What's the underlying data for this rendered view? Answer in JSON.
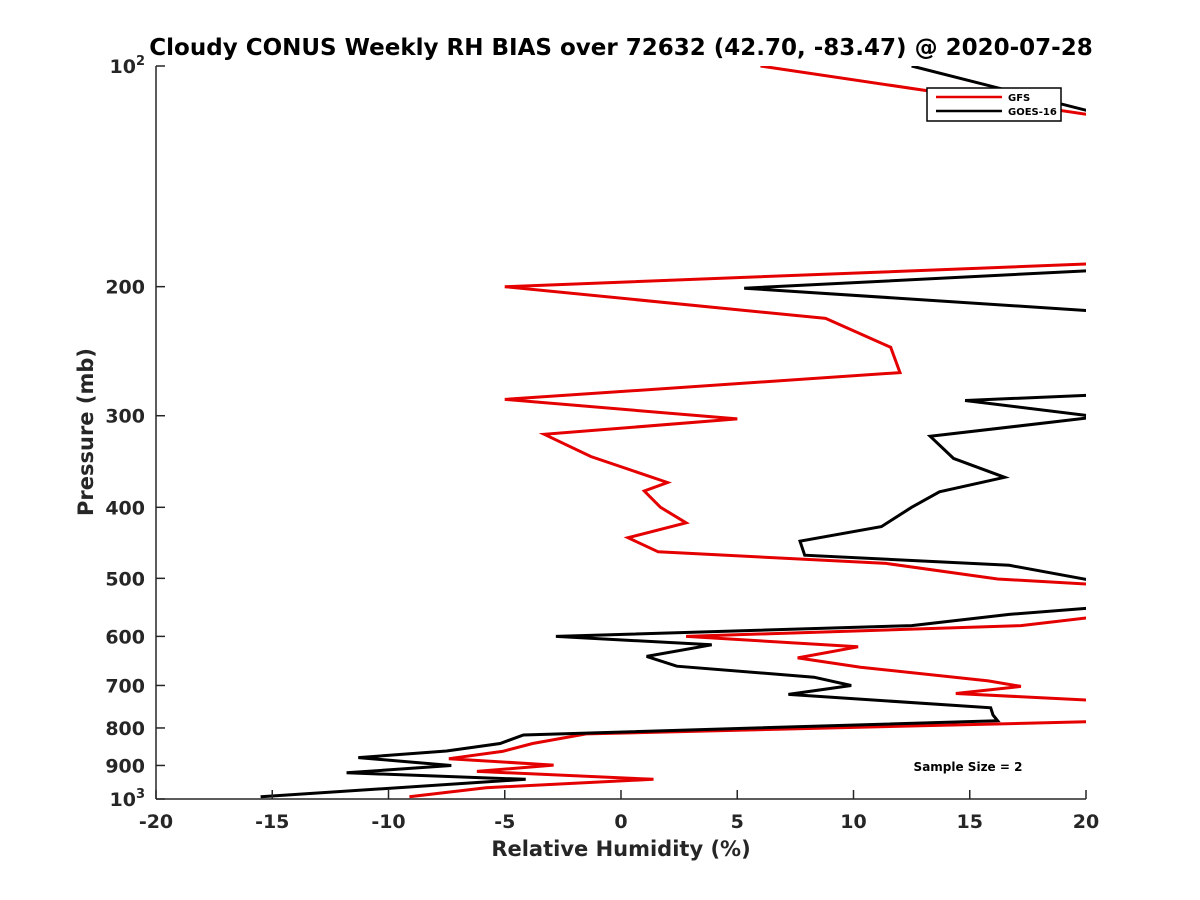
{
  "chart_data": {
    "type": "line",
    "title": "Cloudy CONUS Weekly RH BIAS over 72632 (42.70, -83.47) @ 2020-07-28",
    "xlabel": "Relative Humidity (%)",
    "ylabel": "Pressure (mb)",
    "xlim": [
      -20,
      20
    ],
    "ylim": [
      100,
      1000
    ],
    "yscale": "log",
    "y_reversed": true,
    "x_ticks": [
      {
        "value": -20,
        "label": "-20"
      },
      {
        "value": -15,
        "label": "-15"
      },
      {
        "value": -10,
        "label": "-10"
      },
      {
        "value": -5,
        "label": "-5"
      },
      {
        "value": 0,
        "label": "0"
      },
      {
        "value": 5,
        "label": "5"
      },
      {
        "value": 10,
        "label": "10"
      },
      {
        "value": 15,
        "label": "15"
      },
      {
        "value": 20,
        "label": "20"
      }
    ],
    "y_ticks": [
      {
        "value": 100,
        "base": "10",
        "exp": "2"
      },
      {
        "value": 200,
        "base": "200",
        "exp": ""
      },
      {
        "value": 300,
        "base": "300",
        "exp": ""
      },
      {
        "value": 400,
        "base": "400",
        "exp": ""
      },
      {
        "value": 500,
        "base": "500",
        "exp": ""
      },
      {
        "value": 600,
        "base": "600",
        "exp": ""
      },
      {
        "value": 700,
        "base": "700",
        "exp": ""
      },
      {
        "value": 800,
        "base": "800",
        "exp": ""
      },
      {
        "value": 900,
        "base": "900",
        "exp": ""
      },
      {
        "value": 1000,
        "base": "10",
        "exp": "3"
      }
    ],
    "grid": false,
    "legend_position": "top-right",
    "annotation": "Sample Size = 2",
    "series": [
      {
        "name": "GFS",
        "color": "#e50000",
        "points": [
          [
            6.0,
            100
          ],
          [
            20.5,
            117
          ],
          [
            20.5,
            186
          ],
          [
            -5.0,
            200
          ],
          [
            8.8,
            221
          ],
          [
            11.6,
            242
          ],
          [
            12.0,
            262
          ],
          [
            -5.0,
            285
          ],
          [
            5.0,
            303
          ],
          [
            -3.3,
            318
          ],
          [
            -1.3,
            341
          ],
          [
            2.0,
            370
          ],
          [
            1.0,
            380
          ],
          [
            1.7,
            400
          ],
          [
            2.8,
            420
          ],
          [
            0.3,
            440
          ],
          [
            1.6,
            460
          ],
          [
            11.4,
            477
          ],
          [
            16.2,
            501
          ],
          [
            20.5,
            510
          ],
          [
            20.5,
            564
          ],
          [
            17.2,
            580
          ],
          [
            2.8,
            600
          ],
          [
            10.2,
            620
          ],
          [
            7.6,
            642
          ],
          [
            10.3,
            661
          ],
          [
            15.8,
            690
          ],
          [
            17.2,
            702
          ],
          [
            14.4,
            718
          ],
          [
            20.5,
            734
          ],
          [
            20.5,
            784
          ],
          [
            -1.5,
            815
          ],
          [
            -3.8,
            840
          ],
          [
            -5.1,
            861
          ],
          [
            -7.4,
            881
          ],
          [
            -2.9,
            899
          ],
          [
            -6.2,
            917
          ],
          [
            1.4,
            940
          ],
          [
            -5.8,
            965
          ],
          [
            -9.1,
            993
          ]
        ]
      },
      {
        "name": "GOES-16",
        "color": "#000000",
        "points": [
          [
            12.5,
            100
          ],
          [
            20.5,
            116
          ],
          [
            20.5,
            190
          ],
          [
            5.3,
            201
          ],
          [
            20.5,
            216
          ],
          [
            20.5,
            281
          ],
          [
            14.8,
            286
          ],
          [
            20.5,
            301
          ],
          [
            13.3,
            320
          ],
          [
            14.3,
            343
          ],
          [
            16.5,
            364
          ],
          [
            13.7,
            381
          ],
          [
            12.5,
            400
          ],
          [
            11.2,
            425
          ],
          [
            7.7,
            445
          ],
          [
            7.9,
            465
          ],
          [
            16.7,
            480
          ],
          [
            20.5,
            505
          ],
          [
            20.5,
            548
          ],
          [
            16.7,
            560
          ],
          [
            12.5,
            580
          ],
          [
            -2.8,
            600
          ],
          [
            3.9,
            616
          ],
          [
            1.1,
            639
          ],
          [
            2.4,
            659
          ],
          [
            8.3,
            682
          ],
          [
            9.9,
            700
          ],
          [
            7.2,
            720
          ],
          [
            15.9,
            751
          ],
          [
            16.0,
            768
          ],
          [
            16.2,
            782
          ],
          [
            -4.2,
            818
          ],
          [
            -5.2,
            840
          ],
          [
            -7.5,
            860
          ],
          [
            -11.3,
            878
          ],
          [
            -7.3,
            900
          ],
          [
            -11.8,
            921
          ],
          [
            -4.1,
            940
          ],
          [
            -15.5,
            993
          ]
        ]
      }
    ]
  }
}
